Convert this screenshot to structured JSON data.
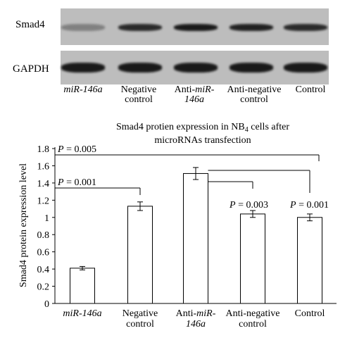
{
  "blot": {
    "rows": [
      {
        "label": "Smad4",
        "band_intensity": [
          0.35,
          0.85,
          0.95,
          0.9,
          0.85
        ]
      },
      {
        "label": "GAPDH",
        "band_intensity": [
          0.95,
          0.95,
          0.95,
          0.95,
          0.95
        ]
      }
    ],
    "lanes": [
      {
        "line1": "miR-146a",
        "line2": "",
        "italic": true
      },
      {
        "line1": "Negative",
        "line2": "control",
        "italic": false
      },
      {
        "line1": "Anti-",
        "line1b": "miR-",
        "line2": "146a",
        "italic": false
      },
      {
        "line1": "Anti-negative",
        "line2": "control",
        "italic": false
      },
      {
        "line1": "Control",
        "line2": "",
        "italic": false
      }
    ],
    "colors": {
      "strip": "#bdbdbd",
      "band": "#111111"
    }
  },
  "chart_data": {
    "type": "bar",
    "title_line1": "Smad4 protien expression in NB",
    "title_subscript": "4",
    "title_line1_end": " cells after",
    "title_line2": "microRNAs transfection",
    "ylabel": "Smad4 protein expression level",
    "xlabel": "",
    "ylim": [
      0,
      1.8
    ],
    "yticks": [
      "0",
      "0.2",
      "0.4",
      "0.6",
      "0.8",
      "1",
      "1.2",
      "1.4",
      "1.6",
      "1.8"
    ],
    "categories": [
      {
        "line1": "miR-146a",
        "line2": ""
      },
      {
        "line1": "Negative",
        "line2": "control"
      },
      {
        "line1": "Anti-miR-",
        "line2": "146a"
      },
      {
        "line1": "Anti-negative",
        "line2": "control"
      },
      {
        "line1": "Control",
        "line2": ""
      }
    ],
    "values": [
      0.41,
      1.13,
      1.51,
      1.04,
      1.0
    ],
    "errors": [
      0.02,
      0.05,
      0.07,
      0.04,
      0.04
    ],
    "annotations": [
      {
        "text_p": "P",
        "text_rest": " = 0.005",
        "from": 0,
        "to": 4
      },
      {
        "text_p": "P",
        "text_rest": " = 0.001",
        "from": 0,
        "to": 1
      },
      {
        "text_p": "P",
        "text_rest": " = 0.003",
        "from": 2,
        "to": 3
      },
      {
        "text_p": "P",
        "text_rest": " = 0.001",
        "from": 2,
        "to": 4
      }
    ],
    "grid": false,
    "colors": {
      "bar_fill": "#ffffff",
      "bar_stroke": "#000000"
    }
  }
}
